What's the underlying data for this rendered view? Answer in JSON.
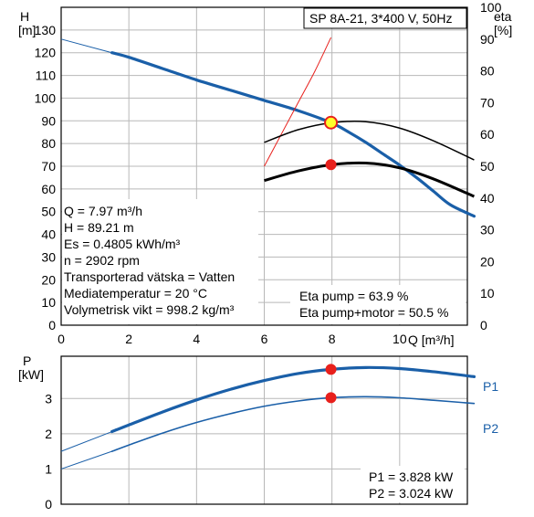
{
  "chart_data": [
    {
      "type": "line",
      "title": "SP 8A-21, 3*400 V, 50Hz",
      "xlabel": "Q [m³/h]",
      "x_unit": "[m³/h]",
      "x_axis_label": "Q",
      "ylabel": "H",
      "y_unit": "[m]",
      "y2label": "eta",
      "y2_unit": "[%]",
      "xlim": [
        0,
        12
      ],
      "ylim": [
        0,
        140
      ],
      "y2lim": [
        0,
        100
      ],
      "grid": true,
      "x_ticks": [
        0,
        2,
        4,
        6,
        8,
        10
      ],
      "y_ticks": [
        0,
        10,
        20,
        30,
        40,
        50,
        60,
        70,
        80,
        90,
        100,
        110,
        120,
        130
      ],
      "y2_ticks": [
        0,
        10,
        20,
        30,
        40,
        50,
        60,
        70,
        80,
        90,
        100
      ],
      "series": [
        {
          "axis": "left",
          "color": "#1a5fa8",
          "extension_from": [
            0,
            126
          ],
          "x": [
            1.5,
            2,
            3,
            4,
            5,
            6,
            7,
            7.97,
            8.5,
            9,
            9.5,
            10,
            10.5,
            11,
            11.5,
            12.2
          ],
          "y": [
            120,
            118,
            113,
            108,
            103.5,
            99,
            94.5,
            89.2,
            85,
            80.5,
            75.5,
            70.5,
            65,
            59,
            53,
            48
          ]
        },
        {
          "axis": "right",
          "color": "#000000",
          "x": [
            6,
            7,
            8,
            9,
            10,
            11,
            12.2
          ],
          "y": [
            57.5,
            61.5,
            63.7,
            64,
            62,
            58,
            52
          ]
        },
        {
          "axis": "right",
          "color": "#000000",
          "x": [
            6,
            7,
            8,
            9,
            10,
            11,
            12.2
          ],
          "y": [
            45.5,
            48.5,
            50.5,
            51,
            49.5,
            46,
            40.5
          ]
        }
      ],
      "red_guide": {
        "color": "#e8201c",
        "x": [
          6,
          6.5,
          7,
          7.5,
          7.97
        ],
        "y2": [
          50,
          60,
          70,
          80,
          90.5
        ]
      },
      "operating_point": {
        "x": 7.97,
        "y": 89.21,
        "eta_pump": 63.9,
        "eta_total": 50.5
      },
      "info_lines": [
        "Q = 7.97 m³/h",
        "H = 89.21 m",
        "Es = 0.4805 kWh/m³",
        "n = 2902 rpm",
        "Transporterad vätska = Vatten",
        "Mediatemperatur = 20 °C",
        "Volymetrisk vikt = 998.2 kg/m³"
      ],
      "eta_labels": [
        "Eta pump = 63.9 %",
        "Eta pump+motor = 50.5 %"
      ]
    },
    {
      "type": "line",
      "ylabel": "P",
      "y_unit": "[kW]",
      "xlim": [
        0,
        12
      ],
      "ylim": [
        0,
        4.2
      ],
      "grid": true,
      "y_ticks": [
        0,
        1,
        2,
        3
      ],
      "series": [
        {
          "name": "P1",
          "color": "#1a5fa8",
          "width": 3.2,
          "extension_from": [
            0,
            1.5
          ],
          "x": [
            1.5,
            2,
            3,
            4,
            5,
            6,
            7,
            7.97,
            9,
            10,
            11,
            12.2
          ],
          "y": [
            2.06,
            2.25,
            2.62,
            2.96,
            3.26,
            3.51,
            3.71,
            3.828,
            3.88,
            3.85,
            3.76,
            3.62
          ]
        },
        {
          "name": "P2",
          "color": "#1a5fa8",
          "width": 1.6,
          "extension_from": [
            0,
            1.0
          ],
          "x": [
            1.5,
            2,
            3,
            4,
            5,
            6,
            7,
            7.97,
            9,
            10,
            11,
            12.2
          ],
          "y": [
            1.5,
            1.68,
            2.02,
            2.32,
            2.57,
            2.78,
            2.93,
            3.024,
            3.05,
            3.02,
            2.95,
            2.86
          ]
        }
      ],
      "operating_point": {
        "x": 7.97,
        "p1": 3.828,
        "p2": 3.024
      },
      "value_labels": [
        "P1 = 3.828 kW",
        "P2 = 3.024 kW"
      ]
    }
  ]
}
